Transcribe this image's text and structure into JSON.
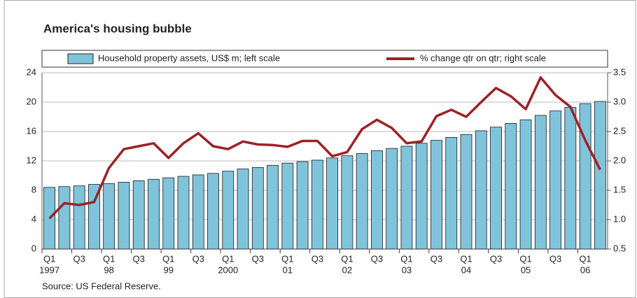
{
  "chart_data": {
    "type": "bar_line",
    "title": "America's housing bubble",
    "source": "Source: US Federal Reserve.",
    "categories": [
      "Q1",
      null,
      "Q3",
      null,
      "Q1",
      null,
      "Q3",
      null,
      "Q1",
      null,
      "Q3",
      null,
      "Q1",
      null,
      "Q3",
      null,
      "Q1",
      null,
      "Q3",
      null,
      "Q1",
      null,
      "Q3",
      null,
      "Q1",
      null,
      "Q3",
      null,
      "Q1",
      null,
      "Q3",
      null,
      "Q1",
      null,
      "Q3",
      null,
      "Q1",
      null
    ],
    "year_labels": [
      "1997",
      null,
      null,
      null,
      "98",
      null,
      null,
      null,
      "99",
      null,
      null,
      null,
      "2000",
      null,
      null,
      null,
      "01",
      null,
      null,
      null,
      "02",
      null,
      null,
      null,
      "03",
      null,
      null,
      null,
      "04",
      null,
      null,
      null,
      "05",
      null,
      null,
      null,
      "06",
      null
    ],
    "series": [
      {
        "name": "Household property assets, US$ m; left scale",
        "color": "#80c4dc",
        "axis": "y",
        "values": [
          8.4,
          8.5,
          8.6,
          8.8,
          8.9,
          9.1,
          9.3,
          9.5,
          9.7,
          9.9,
          10.1,
          10.3,
          10.6,
          10.9,
          11.1,
          11.4,
          11.7,
          11.9,
          12.1,
          12.4,
          12.7,
          13.0,
          13.4,
          13.7,
          14.0,
          14.4,
          14.8,
          15.2,
          15.6,
          16.1,
          16.6,
          17.1,
          17.6,
          18.2,
          18.8,
          19.3,
          19.8,
          20.1
        ]
      },
      {
        "name": "% change qtr on qtr; right scale",
        "color": "#9b2226",
        "axis": "y2",
        "values": [
          1.02,
          1.28,
          1.25,
          1.3,
          1.88,
          2.2,
          2.25,
          2.3,
          2.05,
          2.3,
          2.47,
          2.25,
          2.2,
          2.33,
          2.28,
          2.27,
          2.24,
          2.34,
          2.34,
          2.08,
          2.15,
          2.54,
          2.7,
          2.56,
          2.3,
          2.33,
          2.76,
          2.87,
          2.75,
          3.0,
          3.24,
          3.1,
          2.88,
          3.42,
          3.12,
          2.92,
          2.35,
          1.85
        ]
      }
    ],
    "ylim": [
      0,
      24
    ],
    "yticks": [
      0,
      4,
      8,
      12,
      16,
      20,
      24
    ],
    "y2lim": [
      0.5,
      3.5
    ],
    "y2ticks": [
      0.5,
      {
        "value": 1,
        "label": "1.0"
      },
      1.5,
      {
        "value": 2,
        "label": "2.0"
      },
      2.5,
      {
        "value": 3,
        "label": "3.0"
      },
      3.5
    ],
    "grid": true
  }
}
